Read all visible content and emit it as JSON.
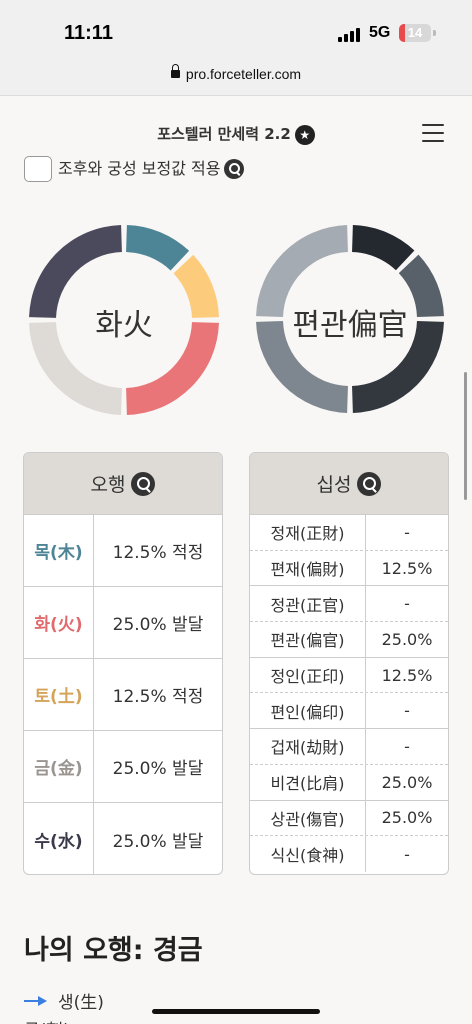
{
  "status": {
    "time": "11:11",
    "network": "5G",
    "battery": "14"
  },
  "browser": {
    "url": "pro.forceteller.com"
  },
  "header": {
    "title": "포스텔러 만세력 2.2",
    "badge": "★"
  },
  "option": {
    "label": "조후와 궁성 보정값 적용"
  },
  "donut_left": {
    "label": "화火",
    "segments": [
      {
        "value": 12.5,
        "color": "#4d8597"
      },
      {
        "value": 12.5,
        "color": "#fccb7c"
      },
      {
        "value": 25,
        "color": "#e97578"
      },
      {
        "value": 25,
        "color": "#dedbd6"
      },
      {
        "value": 25,
        "color": "#4b4a5c"
      }
    ]
  },
  "donut_right": {
    "label": "편관偏官",
    "segments": [
      {
        "value": 12.5,
        "color": "#24282f"
      },
      {
        "value": 12.5,
        "color": "#58606a"
      },
      {
        "value": 25,
        "color": "#33383f"
      },
      {
        "value": 25,
        "color": "#7e8790"
      },
      {
        "value": 25,
        "color": "#a5abb2"
      }
    ]
  },
  "ohaeng": {
    "title": "오행",
    "rows": [
      {
        "name": "목(木)",
        "value": "12.5% 적정",
        "color": "#4d8597"
      },
      {
        "name": "화(火)",
        "value": "25.0% 발달",
        "color": "#e06a6e"
      },
      {
        "name": "토(土)",
        "value": "12.5% 적정",
        "color": "#d4a45a"
      },
      {
        "name": "금(金)",
        "value": "25.0% 발달",
        "color": "#9a9590"
      },
      {
        "name": "수(水)",
        "value": "25.0% 발달",
        "color": "#3b3a4a"
      }
    ]
  },
  "sipsung": {
    "title": "십성",
    "rows": [
      {
        "name": "정재(正財)",
        "value": "-"
      },
      {
        "name": "편재(偏財)",
        "value": "12.5%"
      },
      {
        "name": "정관(正官)",
        "value": "-"
      },
      {
        "name": "편관(偏官)",
        "value": "25.0%"
      },
      {
        "name": "정인(正印)",
        "value": "12.5%"
      },
      {
        "name": "편인(偏印)",
        "value": "-"
      },
      {
        "name": "겁재(劫財)",
        "value": "-"
      },
      {
        "name": "비견(比肩)",
        "value": "25.0%"
      },
      {
        "name": "상관(傷官)",
        "value": "25.0%"
      },
      {
        "name": "식신(食神)",
        "value": "-"
      }
    ]
  },
  "section": {
    "title": "나의 오행: 경금"
  },
  "legend": {
    "saeng": "생(生)",
    "geuk": "극(剋)"
  }
}
